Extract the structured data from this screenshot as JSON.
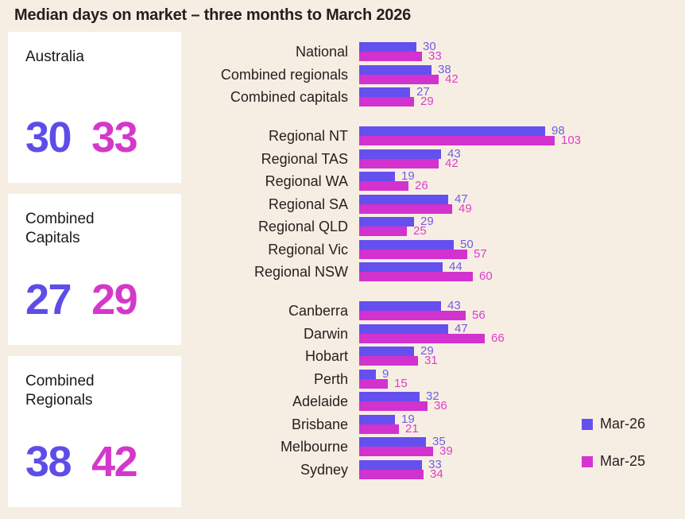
{
  "title": "Median days on market – three months to March 2026",
  "colors": {
    "background": "#F7EEE3",
    "card_background": "#FFFFFF",
    "text": "#241F1F",
    "mar26_bar": "#6450EE",
    "mar25_bar": "#D232CD",
    "mar26_value_text": "#6E5DE7",
    "mar25_value_text": "#DC3DCB"
  },
  "cards": [
    {
      "label": "Australia",
      "mar26": "30",
      "mar25": "33"
    },
    {
      "label": "Combined Capitals",
      "mar26": "27",
      "mar25": "29"
    },
    {
      "label": "Combined Regionals",
      "mar26": "38",
      "mar25": "42"
    }
  ],
  "legend": [
    {
      "label": "Mar-26",
      "color": "#6450EE"
    },
    {
      "label": "Mar-25",
      "color": "#D632D2"
    }
  ],
  "chart_data": {
    "type": "bar",
    "orientation": "horizontal",
    "title": "Median days on market – three months to March 2026",
    "series_names": [
      "Mar-26",
      "Mar-25"
    ],
    "xlim": [
      0,
      103
    ],
    "grid": false,
    "legend_position": "right",
    "groups": [
      {
        "rows": [
          {
            "label": "National",
            "values": [
              30,
              33
            ]
          },
          {
            "label": "Combined regionals",
            "values": [
              38,
              42
            ]
          },
          {
            "label": "Combined capitals",
            "values": [
              27,
              29
            ]
          }
        ]
      },
      {
        "rows": [
          {
            "label": "Regional NT",
            "values": [
              98,
              103
            ]
          },
          {
            "label": "Regional TAS",
            "values": [
              43,
              42
            ]
          },
          {
            "label": "Regional WA",
            "values": [
              19,
              26
            ]
          },
          {
            "label": "Regional SA",
            "values": [
              47,
              49
            ]
          },
          {
            "label": "Regional QLD",
            "values": [
              29,
              25
            ]
          },
          {
            "label": "Regional Vic",
            "values": [
              50,
              57
            ]
          },
          {
            "label": "Regional NSW",
            "values": [
              44,
              60
            ]
          }
        ]
      },
      {
        "rows": [
          {
            "label": "Canberra",
            "values": [
              43,
              56
            ]
          },
          {
            "label": "Darwin",
            "values": [
              47,
              66
            ]
          },
          {
            "label": "Hobart",
            "values": [
              29,
              31
            ]
          },
          {
            "label": "Perth",
            "values": [
              9,
              15
            ]
          },
          {
            "label": "Adelaide",
            "values": [
              32,
              36
            ]
          },
          {
            "label": "Brisbane",
            "values": [
              19,
              21
            ]
          },
          {
            "label": "Melbourne",
            "values": [
              35,
              39
            ]
          },
          {
            "label": "Sydney",
            "values": [
              33,
              34
            ]
          }
        ]
      }
    ]
  }
}
